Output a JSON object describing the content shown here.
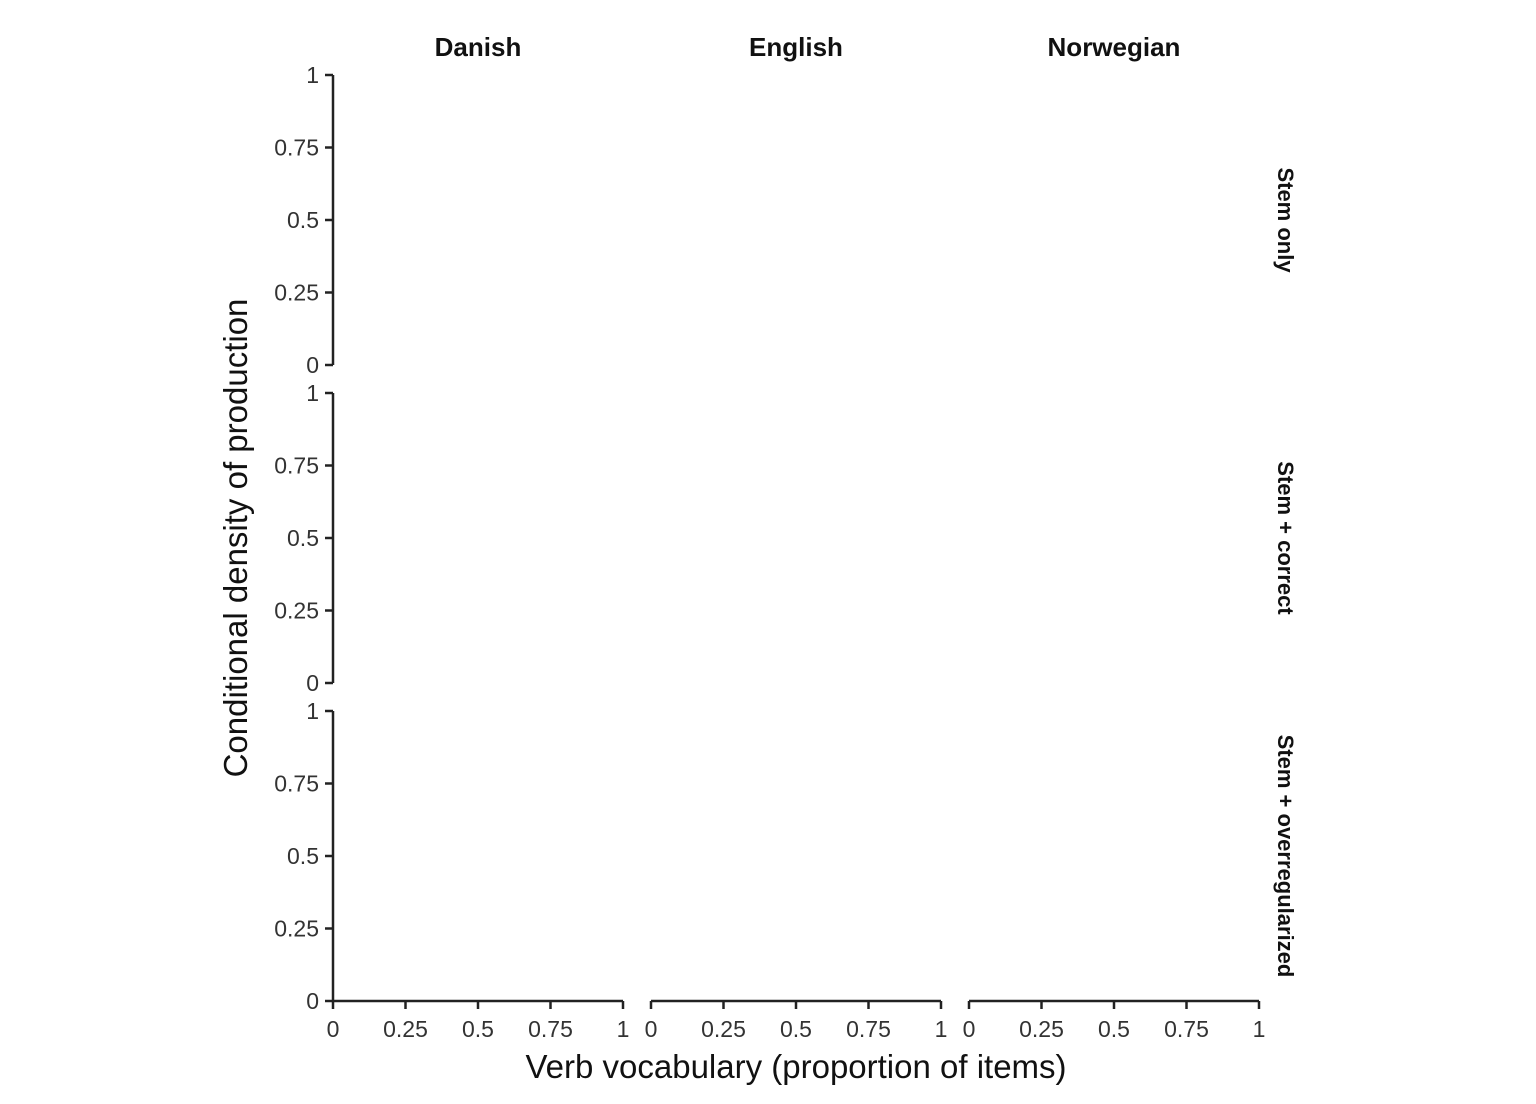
{
  "chart_data": {
    "type": "line",
    "facet_columns": [
      "Danish",
      "English",
      "Norwegian"
    ],
    "facet_rows": [
      "Stem only",
      "Stem + correct",
      "Stem + overregularized"
    ],
    "xlabel": "Verb vocabulary (proportion of items)",
    "ylabel": "Conditional density of production",
    "xlim": [
      0,
      1
    ],
    "ylim": [
      0,
      1
    ],
    "x_ticks": [
      0,
      0.25,
      0.5,
      0.75,
      1
    ],
    "x_tick_labels": [
      "0",
      "0.25",
      "0.5",
      "0.75",
      "1"
    ],
    "y_ticks": [
      0,
      0.25,
      0.5,
      0.75,
      1
    ],
    "y_tick_labels": [
      "0",
      "0.25",
      "0.5",
      "0.75",
      "1"
    ],
    "series": [],
    "grid": false,
    "legend": "none"
  }
}
